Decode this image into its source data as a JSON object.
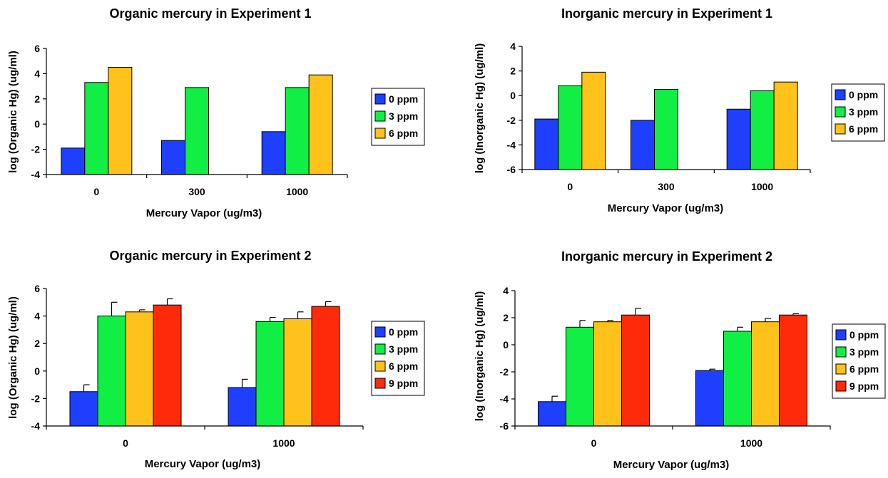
{
  "chart_data": [
    {
      "type": "bar",
      "title": "Organic mercury in Experiment 1",
      "xlabel": "Mercury Vapor (ug/m3)",
      "ylabel": "log (Organic Hg) (ug/ml)",
      "categories": [
        "0",
        "300",
        "1000"
      ],
      "ylim": [
        -4,
        6
      ],
      "yticks": [
        -4,
        -2,
        0,
        2,
        4,
        6
      ],
      "legend_position": "right",
      "series": [
        {
          "name": "0 ppm",
          "color": "#1f3fff",
          "values": [
            -1.9,
            -1.3,
            -0.6
          ]
        },
        {
          "name": "3 ppm",
          "color": "#11ee44",
          "values": [
            3.3,
            2.9,
            2.9
          ]
        },
        {
          "name": "6 ppm",
          "color": "#ffc21a",
          "values": [
            4.5,
            null,
            3.9
          ]
        }
      ]
    },
    {
      "type": "bar",
      "title": "Inorganic mercury in Experiment 1",
      "xlabel": "Mercury Vapor (ug/m3)",
      "ylabel": "log (Inorganic Hg) (ug/ml)",
      "categories": [
        "0",
        "300",
        "1000"
      ],
      "ylim": [
        -6,
        4
      ],
      "yticks": [
        -6,
        -4,
        -2,
        0,
        2,
        4
      ],
      "legend_position": "right",
      "series": [
        {
          "name": "0 ppm",
          "color": "#1f3fff",
          "values": [
            -1.9,
            -2.0,
            -1.1
          ]
        },
        {
          "name": "3 ppm",
          "color": "#11ee44",
          "values": [
            0.8,
            0.5,
            0.4
          ]
        },
        {
          "name": "6 ppm",
          "color": "#ffc21a",
          "values": [
            1.9,
            null,
            1.1
          ]
        }
      ]
    },
    {
      "type": "bar",
      "title": "Organic mercury in Experiment 2",
      "xlabel": "Mercury Vapor (ug/m3)",
      "ylabel": "log (Organic Hg) (ug/ml)",
      "categories": [
        "0",
        "1000"
      ],
      "ylim": [
        -4,
        6
      ],
      "yticks": [
        -4,
        -2,
        0,
        2,
        4,
        6
      ],
      "legend_position": "right",
      "series": [
        {
          "name": "0 ppm",
          "color": "#1f3fff",
          "values": [
            -1.5,
            -1.2
          ],
          "errors": [
            0.5,
            0.6
          ]
        },
        {
          "name": "3 ppm",
          "color": "#11ee44",
          "values": [
            4.0,
            3.6
          ],
          "errors": [
            1.0,
            0.3
          ]
        },
        {
          "name": "6 ppm",
          "color": "#ffc21a",
          "values": [
            4.3,
            3.8
          ],
          "errors": [
            0.15,
            0.5
          ]
        },
        {
          "name": "9 ppm",
          "color": "#ff2a0a",
          "values": [
            4.8,
            4.7
          ],
          "errors": [
            0.45,
            0.35
          ]
        }
      ]
    },
    {
      "type": "bar",
      "title": "Inorganic mercury in Experiment 2",
      "xlabel": "Mercury Vapor (ug/m3)",
      "ylabel": "log (Inorganic Hg) (ug/ml)",
      "categories": [
        "0",
        "1000"
      ],
      "ylim": [
        -6,
        4
      ],
      "yticks": [
        -6,
        -4,
        -2,
        0,
        2,
        4
      ],
      "legend_position": "right",
      "series": [
        {
          "name": "0 ppm",
          "color": "#1f3fff",
          "values": [
            -4.2,
            -1.9
          ],
          "errors": [
            0.4,
            0.1
          ]
        },
        {
          "name": "3 ppm",
          "color": "#11ee44",
          "values": [
            1.3,
            1.0
          ],
          "errors": [
            0.5,
            0.3
          ]
        },
        {
          "name": "6 ppm",
          "color": "#ffc21a",
          "values": [
            1.7,
            1.7
          ],
          "errors": [
            0.1,
            0.25
          ]
        },
        {
          "name": "9 ppm",
          "color": "#ff2a0a",
          "values": [
            2.2,
            2.2
          ],
          "errors": [
            0.5,
            0.1
          ]
        }
      ]
    }
  ]
}
